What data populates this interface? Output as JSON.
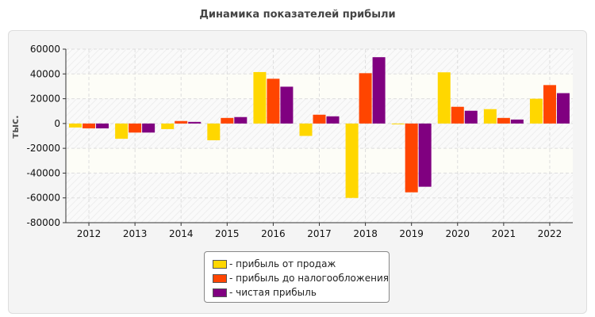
{
  "chart_data": {
    "type": "bar",
    "title": "Динамика показателей прибыли",
    "ylabel": "тыс.",
    "xlabel": "",
    "ylim": [
      -80000,
      60000
    ],
    "yticks": [
      60000,
      40000,
      20000,
      0,
      -20000,
      -40000,
      -60000,
      -80000
    ],
    "grid": true,
    "legend_position": "bottom",
    "categories": [
      "2012",
      "2013",
      "2014",
      "2015",
      "2016",
      "2017",
      "2018",
      "2019",
      "2020",
      "2021",
      "2022"
    ],
    "series": [
      {
        "name": "- прибыль от продаж",
        "color": "#FFD700",
        "values": [
          -3200,
          -12300,
          -4500,
          -13500,
          41500,
          -10000,
          -60000,
          -500,
          41300,
          11600,
          20000
        ]
      },
      {
        "name": "- прибыль до налогообложения",
        "color": "#FF4500",
        "values": [
          -3900,
          -7300,
          2000,
          4500,
          36100,
          7100,
          40600,
          -55500,
          13500,
          4500,
          31000
        ]
      },
      {
        "name": "- чистая прибыль",
        "color": "#800080",
        "values": [
          -3900,
          -7300,
          1300,
          5200,
          29700,
          5800,
          53500,
          -51000,
          10300,
          3200,
          24500
        ]
      }
    ]
  }
}
